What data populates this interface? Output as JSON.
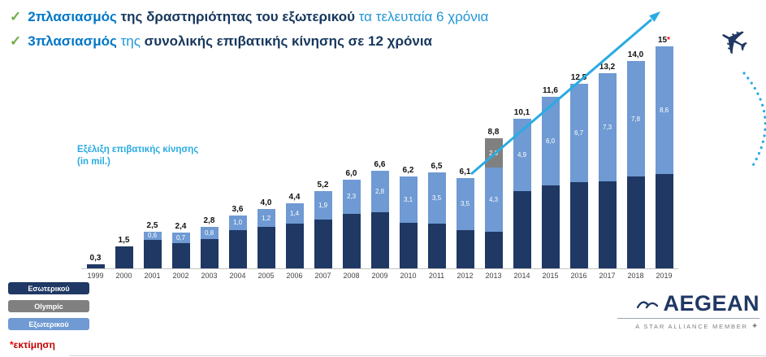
{
  "headlines": [
    {
      "segments": [
        {
          "text": "2πλασιασμός",
          "style": "accent-bold"
        },
        {
          "text": " της δραστηριότητας του εξωτερικού",
          "style": "dark-bold"
        },
        {
          "text": " τα τελευταία 6 χρόνια",
          "style": "accent"
        }
      ]
    },
    {
      "segments": [
        {
          "text": "3πλασιασμός",
          "style": "accent-bold"
        },
        {
          "text": " της ",
          "style": "accent"
        },
        {
          "text": "συνολικής επιβατικής κίνησης",
          "style": "dark-bold"
        },
        {
          "text": " σε 12 χρόνια",
          "style": "dark-bold"
        }
      ]
    }
  ],
  "chart_data": {
    "type": "bar",
    "stacked": true,
    "title": "Εξέλιξη επιβατικής κίνησης",
    "title2": "(in mil.)",
    "ylim": [
      0,
      15
    ],
    "categories": [
      "1999",
      "2000",
      "2001",
      "2002",
      "2003",
      "2004",
      "2005",
      "2006",
      "2007",
      "2008",
      "2009",
      "2010",
      "2011",
      "2012",
      "2013",
      "2014",
      "2015",
      "2016",
      "2017",
      "2018",
      "2019"
    ],
    "series": [
      {
        "key": "domestic",
        "name": "Εσωτερικού",
        "color": "#1F3864",
        "values": [
          0.3,
          1.5,
          1.9,
          1.7,
          2.0,
          2.6,
          2.8,
          3.0,
          3.3,
          3.7,
          3.8,
          3.1,
          3.0,
          2.6,
          2.5,
          5.2,
          5.6,
          5.8,
          5.9,
          6.2,
          6.4
        ],
        "labels": [
          "",
          "",
          "",
          "",
          "",
          "",
          "",
          "",
          "",
          "",
          "",
          "",
          "",
          "",
          "",
          "",
          "",
          "",
          "",
          "",
          ""
        ]
      },
      {
        "key": "olympic",
        "name": "Olympic",
        "color": "#808080",
        "values": [
          0,
          0,
          0,
          0,
          0,
          0,
          0,
          0,
          0,
          0,
          0,
          0,
          0,
          0,
          2.0,
          0,
          0,
          0,
          0,
          0,
          0
        ],
        "labels": [
          "",
          "",
          "",
          "",
          "",
          "",
          "",
          "",
          "",
          "",
          "",
          "",
          "",
          "",
          "2,0",
          "",
          "",
          "",
          "",
          "",
          ""
        ]
      },
      {
        "key": "international",
        "name": "Εξωτερικού",
        "color": "#6F9AD3",
        "values": [
          0,
          0,
          0.6,
          0.7,
          0.8,
          1.0,
          1.2,
          1.4,
          1.9,
          2.3,
          2.8,
          3.1,
          3.5,
          3.5,
          4.3,
          4.9,
          6.0,
          6.7,
          7.3,
          7.8,
          8.6
        ],
        "labels": [
          "",
          "",
          "0,6",
          "0,7",
          "0,8",
          "1,0",
          "1,2",
          "1,4",
          "1,9",
          "2,3",
          "2,8",
          "3,1",
          "3,5",
          "3,5",
          "4,3",
          "4,9",
          "6,0",
          "6,7",
          "7,3",
          "7,8",
          "8,6"
        ]
      }
    ],
    "stack_order_bottom_to_top": [
      "domestic",
      "international",
      "olympic"
    ],
    "totals": [
      "0,3",
      "1,5",
      "2,5",
      "2,4",
      "2,8",
      "3,6",
      "4,0",
      "4,4",
      "5,2",
      "6,0",
      "6,6",
      "6,2",
      "6,5",
      "6,1",
      "8,8",
      "10,1",
      "11,6",
      "12,5",
      "13,2",
      "14,0",
      "15"
    ],
    "last_total_estimated": true,
    "legend_position": "bottom-left",
    "grid": false
  },
  "legend": {
    "items": [
      {
        "key": "domestic",
        "label": "Εσωτερικού",
        "color": "#1F3864"
      },
      {
        "key": "olympic",
        "label": "Olympic",
        "color": "#808080"
      },
      {
        "key": "international",
        "label": "Εξωτερικού",
        "color": "#6F9AD3"
      }
    ]
  },
  "footnote": {
    "star": "*",
    "label": "εκτίμηση"
  },
  "logo": {
    "brand": "AEGEAN",
    "member": "A STAR ALLIANCE MEMBER"
  },
  "icons": {
    "airplane": "✈",
    "check": "✓",
    "star_alliance": "✦"
  },
  "colors": {
    "accent_text": "#0077C8",
    "dark_text": "#17375D",
    "cyan": "#29ABE2",
    "check_green": "#70AD47",
    "estimate_red": "#FF0000"
  }
}
